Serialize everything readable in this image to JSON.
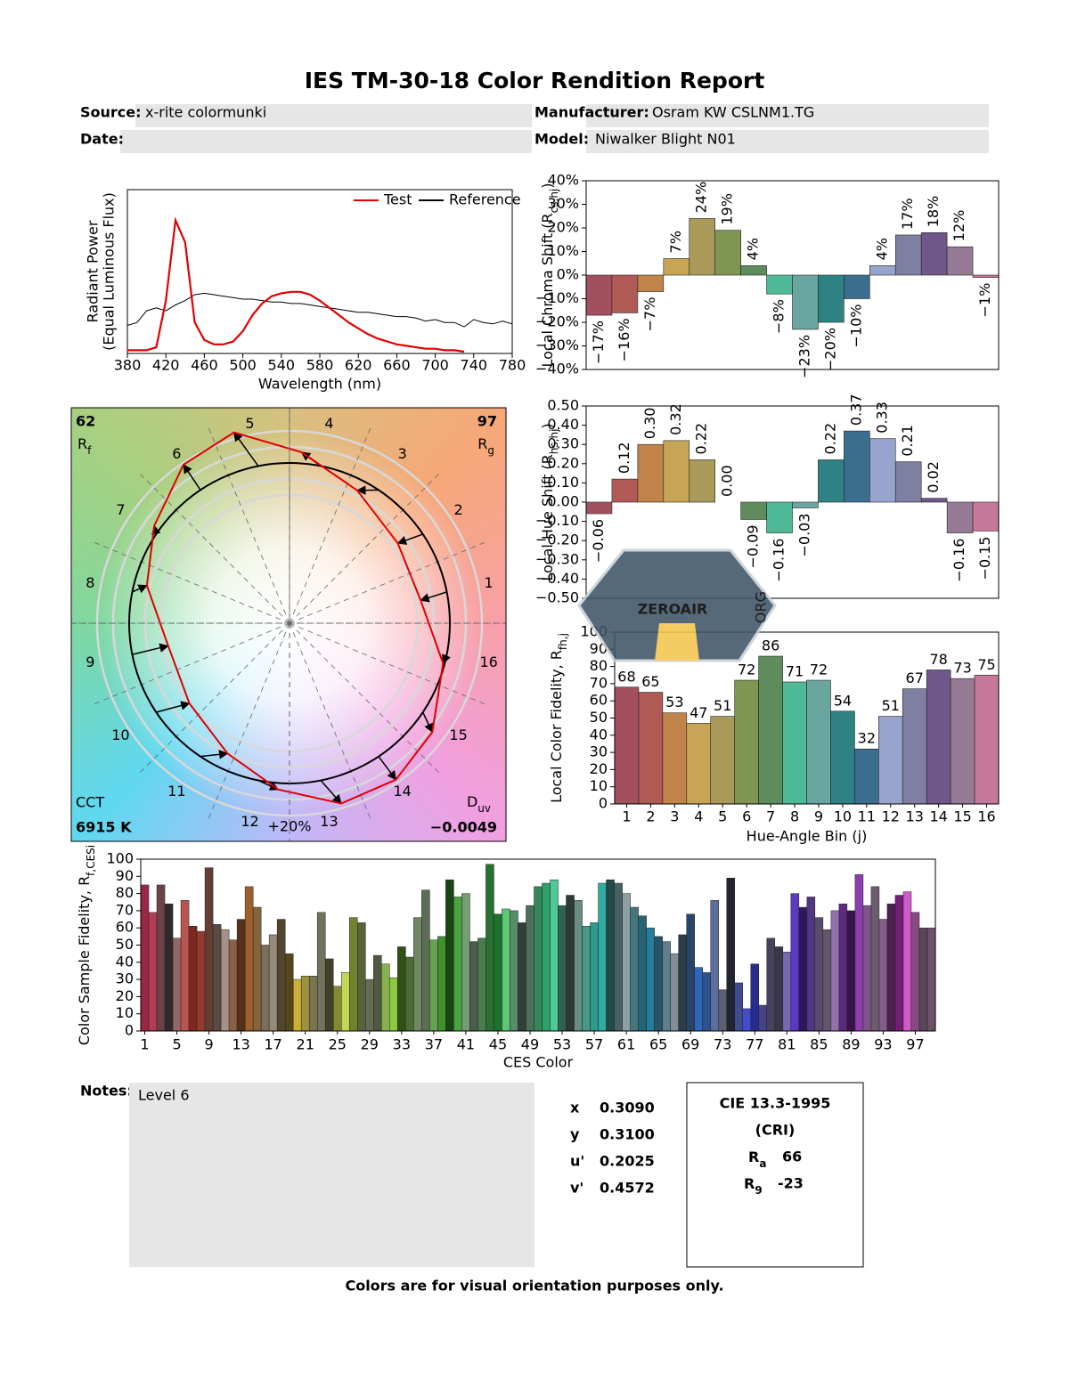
{
  "header": {
    "title": "IES TM-30-18 Color Rendition Report",
    "source_label": "Source:",
    "source": "x-rite colormunki",
    "manufacturer_label": "Manufacturer:",
    "manufacturer": "Osram KW CSLNM1.TG",
    "date_label": "Date:",
    "model_label": "Model:",
    "model": "Niwalker Blight N01"
  },
  "chart_data": [
    {
      "type": "line",
      "xlabel": "Wavelength (nm)",
      "ylabel": "Radiant Power",
      "ylabel2": "(Equal Luminous Flux)",
      "x": [
        380,
        390,
        400,
        410,
        420,
        430,
        440,
        450,
        460,
        470,
        480,
        490,
        500,
        510,
        520,
        530,
        540,
        550,
        560,
        570,
        580,
        590,
        600,
        610,
        620,
        630,
        640,
        650,
        660,
        670,
        680,
        690,
        700,
        710,
        720,
        730,
        740,
        750,
        760,
        770,
        780
      ],
      "xlim": [
        380,
        780
      ],
      "xticks": [
        380,
        420,
        460,
        500,
        540,
        580,
        620,
        660,
        700,
        740,
        780
      ],
      "ylim": [
        0,
        1
      ],
      "legend": "upper right",
      "series": [
        {
          "name": "Test",
          "color": "#e00000",
          "values": [
            0.01,
            0.01,
            0.01,
            0.03,
            0.35,
            0.9,
            0.75,
            0.2,
            0.08,
            0.05,
            0.05,
            0.07,
            0.14,
            0.25,
            0.33,
            0.38,
            0.4,
            0.41,
            0.41,
            0.39,
            0.35,
            0.3,
            0.25,
            0.2,
            0.16,
            0.12,
            0.09,
            0.07,
            0.05,
            0.04,
            0.03,
            0.02,
            0.02,
            0.01,
            0.01,
            0,
            null,
            null,
            null,
            null,
            null
          ]
        },
        {
          "name": "Reference",
          "color": "#000000",
          "values": [
            0.18,
            0.2,
            0.28,
            0.3,
            0.28,
            0.32,
            0.35,
            0.39,
            0.4,
            0.39,
            0.38,
            0.37,
            0.36,
            0.36,
            0.35,
            0.34,
            0.34,
            0.33,
            0.33,
            0.32,
            0.31,
            0.3,
            0.29,
            0.28,
            0.27,
            0.27,
            0.26,
            0.25,
            0.24,
            0.24,
            0.23,
            0.21,
            0.22,
            0.2,
            0.2,
            0.17,
            0.22,
            0.2,
            0.19,
            0.21,
            0.19
          ]
        }
      ]
    },
    {
      "type": "vector",
      "categories": [
        "1",
        "2",
        "3",
        "4",
        "5",
        "6",
        "7",
        "8",
        "9",
        "10",
        "11",
        "12",
        "13",
        "14",
        "15",
        "16"
      ],
      "rf": 62,
      "rf_symbol": [
        "R",
        "f"
      ],
      "rg": 97,
      "rg_symbol": [
        "R",
        "g"
      ],
      "cct_label": "CCT",
      "cct": "6915 K",
      "duv_symbol": [
        "D",
        "uv"
      ],
      "duv": "−0.0049",
      "scale_label": "+20%"
    },
    {
      "type": "bar",
      "ylabel": [
        "Local Chroma Shift (R",
        "cs,hj",
        ")"
      ],
      "values": [
        -17,
        -16,
        -7,
        7,
        24,
        19,
        4,
        -8,
        -23,
        -20,
        -10,
        4,
        17,
        18,
        12,
        -1
      ],
      "value_labels": [
        "−17%",
        "−16%",
        "−7%",
        "7%",
        "24%",
        "19%",
        "4%",
        "−8%",
        "−23%",
        "−20%",
        "−10%",
        "4%",
        "17%",
        "18%",
        "12%",
        "−1%"
      ],
      "colors": [
        "#a3505e",
        "#b05a55",
        "#c0834a",
        "#c8a556",
        "#a99a5a",
        "#7e9652",
        "#5f8c5c",
        "#4fb896",
        "#6aa6a0",
        "#2f8284",
        "#3b6e8e",
        "#97a5ce",
        "#7f7fa1",
        "#6f5789",
        "#957b95",
        "#c7799a"
      ],
      "ylim": [
        -40,
        40
      ],
      "yticks": [
        {
          "value": 40,
          "label": "40%"
        },
        {
          "value": 30,
          "label": "30%"
        },
        {
          "value": 20,
          "label": "20%"
        },
        {
          "value": 10,
          "label": "10%"
        },
        {
          "value": 0,
          "label": "0%"
        },
        {
          "value": -10,
          "label": "−10%"
        },
        {
          "value": -20,
          "label": "−20%"
        },
        {
          "value": -30,
          "label": "−30%"
        },
        {
          "value": -40,
          "label": "−40%"
        }
      ]
    },
    {
      "type": "bar",
      "ylabel": [
        "Local Hue Shift (R",
        "hs,hj",
        ")"
      ],
      "values": [
        -0.06,
        0.12,
        0.3,
        0.32,
        0.22,
        0,
        -0.09,
        -0.16,
        -0.03,
        0.22,
        0.37,
        0.33,
        0.21,
        0.02,
        -0.16,
        -0.15
      ],
      "value_labels": [
        "−0.06",
        "0.12",
        "0.30",
        "0.32",
        "0.22",
        "0.00",
        "−0.09",
        "−0.16",
        "−0.03",
        "0.22",
        "0.37",
        "0.33",
        "0.21",
        "0.02",
        "−0.16",
        "−0.15"
      ],
      "colors": [
        "#a3505e",
        "#b05a55",
        "#c0834a",
        "#c8a556",
        "#a99a5a",
        "#7e9652",
        "#5f8c5c",
        "#4fb896",
        "#6aa6a0",
        "#2f8284",
        "#3b6e8e",
        "#97a5ce",
        "#7f7fa1",
        "#6f5789",
        "#957b95",
        "#c7799a"
      ],
      "ylim": [
        -0.5,
        0.5
      ],
      "yticks": [
        {
          "value": 0.5,
          "label": "0.50"
        },
        {
          "value": 0.4,
          "label": "0.40"
        },
        {
          "value": 0.3,
          "label": "0.30"
        },
        {
          "value": 0.2,
          "label": "0.20"
        },
        {
          "value": 0.1,
          "label": "0.10"
        },
        {
          "value": 0,
          "label": "0.00"
        },
        {
          "value": -0.1,
          "label": "−0.10"
        },
        {
          "value": -0.2,
          "label": "−0.20"
        },
        {
          "value": -0.3,
          "label": "−0.30"
        },
        {
          "value": -0.4,
          "label": "−0.40"
        },
        {
          "value": -0.5,
          "label": "−0.50"
        }
      ]
    },
    {
      "type": "bar",
      "ylabel": [
        "Local Color Fidelity, R",
        "fh,j"
      ],
      "xlabel": "Hue-Angle Bin (j)",
      "categories": [
        "1",
        "2",
        "3",
        "4",
        "5",
        "6",
        "7",
        "8",
        "9",
        "10",
        "11",
        "12",
        "13",
        "14",
        "15",
        "16"
      ],
      "values": [
        68,
        65,
        53,
        47,
        51,
        72,
        86,
        71,
        72,
        54,
        32,
        51,
        67,
        78,
        73,
        75
      ],
      "colors": [
        "#a3505e",
        "#b05a55",
        "#c0834a",
        "#c8a556",
        "#a99a5a",
        "#7e9652",
        "#5f8c5c",
        "#4fb896",
        "#6aa6a0",
        "#2f8284",
        "#3b6e8e",
        "#97a5ce",
        "#7f7fa1",
        "#6f5789",
        "#957b95",
        "#c7799a"
      ],
      "ylim": [
        0,
        100
      ],
      "yticks": [
        0,
        10,
        20,
        30,
        40,
        50,
        60,
        70,
        80,
        90,
        100
      ]
    },
    {
      "type": "ces",
      "ylabel": [
        "Color Sample Fidelity, R",
        "f,CESi"
      ],
      "xlabel": "CES Color",
      "x": [
        1,
        2,
        3,
        4,
        5,
        6,
        7,
        8,
        9,
        10,
        11,
        12,
        13,
        14,
        15,
        16,
        17,
        18,
        19,
        20,
        21,
        22,
        23,
        24,
        25,
        26,
        27,
        28,
        29,
        30,
        31,
        32,
        33,
        34,
        35,
        36,
        37,
        38,
        39,
        40,
        41,
        42,
        43,
        44,
        45,
        46,
        47,
        48,
        49,
        50,
        51,
        52,
        53,
        54,
        55,
        56,
        57,
        58,
        59,
        60,
        61,
        62,
        63,
        64,
        65,
        66,
        67,
        68,
        69,
        70,
        71,
        72,
        73,
        74,
        75,
        76,
        77,
        78,
        79,
        80,
        81,
        82,
        83,
        84,
        85,
        86,
        87,
        88,
        89,
        90,
        91,
        92,
        93,
        94,
        95,
        96,
        97,
        98,
        99
      ],
      "values": [
        85,
        69,
        85,
        74,
        54,
        76,
        61,
        58,
        95,
        62,
        59,
        53,
        65,
        84,
        72,
        50,
        56,
        65,
        45,
        30,
        32,
        32,
        69,
        42,
        26,
        34,
        66,
        63,
        30,
        44,
        39,
        31,
        49,
        43,
        66,
        82,
        53,
        55,
        88,
        78,
        80,
        52,
        54,
        97,
        68,
        71,
        70,
        63,
        73,
        84,
        86,
        88,
        73,
        79,
        76,
        61,
        63,
        86,
        88,
        86,
        80,
        72,
        67,
        60,
        55,
        52,
        45,
        56,
        68,
        37,
        34,
        76,
        24,
        89,
        28,
        13,
        39,
        15,
        54,
        49,
        46,
        80,
        72,
        78,
        66,
        59,
        70,
        74,
        70,
        91,
        73,
        84,
        65,
        74,
        79,
        81,
        69,
        60,
        60
      ],
      "xlim": [
        0.5,
        99.5
      ],
      "xticks": [
        1,
        5,
        9,
        13,
        17,
        21,
        25,
        29,
        33,
        37,
        41,
        45,
        49,
        53,
        57,
        61,
        65,
        69,
        73,
        77,
        81,
        85,
        89,
        93,
        97
      ],
      "ylim": [
        0,
        100
      ],
      "yticks": [
        0,
        10,
        20,
        30,
        40,
        50,
        60,
        70,
        80,
        90,
        100
      ]
    }
  ],
  "notes": {
    "label": "Notes:",
    "text": "Level 6"
  },
  "chromaticity": [
    {
      "label": "x",
      "value": "0.3090"
    },
    {
      "label": "y",
      "value": "0.3100"
    },
    {
      "label": "u'",
      "value": "0.2025"
    },
    {
      "label": "v'",
      "value": "0.4572"
    }
  ],
  "cri": {
    "title": "CIE 13.3-1995",
    "subtitle": "(CRI)",
    "ra_symbol": [
      "R",
      "a"
    ],
    "ra": 66,
    "r9_symbol": [
      "R",
      "9"
    ],
    "r9": -23
  },
  "watermark": {
    "text": "ZEROAIR",
    "sub": "ORG"
  },
  "footer": "Colors are for visual orientation purposes only."
}
